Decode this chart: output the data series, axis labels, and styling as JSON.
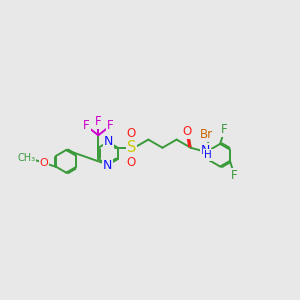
{
  "bg_color": "#e8e8e8",
  "bond_color": "#3a9a3a",
  "bond_width": 1.4,
  "dbo": 0.06,
  "figsize": [
    3.0,
    3.0
  ],
  "dpi": 100,
  "xlim": [
    -1.5,
    11.5
  ],
  "ylim": [
    1.5,
    8.5
  ],
  "colors": {
    "C": "#3a9a3a",
    "N": "#1010ff",
    "O": "#ff2020",
    "S": "#cccc00",
    "F": "#3a9a3a",
    "Br": "#cc6600",
    "F_cf3": "#cc00cc"
  }
}
